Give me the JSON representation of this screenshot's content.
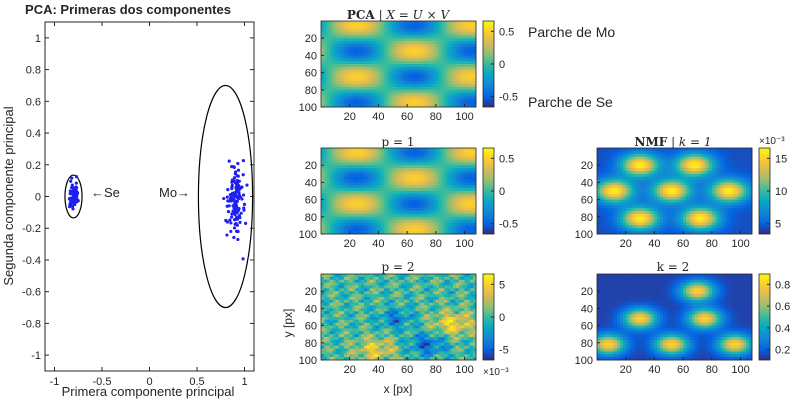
{
  "colors": {
    "scatter_se": "#1f1ff0",
    "scatter_mo": "#1f1ff0",
    "axis": "#262626",
    "ellipse": "#000000",
    "colormap": "parula"
  },
  "chart_data": [
    {
      "id": "pca_scatter",
      "type": "scatter",
      "title": "PCA: Primeras dos componentes",
      "xlabel": "Primera componente principal",
      "ylabel": "Segunda componente principal",
      "xlim": [
        -1.1,
        1.1
      ],
      "ylim": [
        -1.1,
        1.1
      ],
      "xticks": [
        "-1",
        "-0.5",
        "0",
        "0.5",
        "1"
      ],
      "yticks": [
        "1",
        "0.8",
        "0.6",
        "0.4",
        "0.2",
        "0",
        "-0.2",
        "-0.4",
        "-0.6",
        "-0.8",
        "-1"
      ],
      "grid": false,
      "series": [
        {
          "cluster": "Se",
          "center": [
            -0.8,
            0.01
          ],
          "spread": [
            0.035,
            0.055
          ],
          "count": 60
        },
        {
          "cluster": "Mo",
          "center": [
            0.9,
            -0.03
          ],
          "spread": [
            0.06,
            0.15
          ],
          "count": 130
        }
      ],
      "ellipses": [
        {
          "center": [
            -0.8,
            0.0
          ],
          "radii": [
            0.09,
            0.135
          ]
        },
        {
          "center": [
            0.8,
            0.0
          ],
          "radii": [
            0.285,
            0.7
          ]
        }
      ],
      "annotations": [
        {
          "text": "←Se",
          "x": -0.72,
          "y": 0.0
        },
        {
          "text": "Mo→",
          "x": 0.25,
          "y": 0.0
        }
      ]
    },
    {
      "id": "pca_main",
      "type": "heatmap",
      "title_bold": "PCA",
      "title_rest": " | X = U × V",
      "pattern": "pca",
      "xticks": [
        "20",
        "40",
        "60",
        "80",
        "100"
      ],
      "yticks": [
        "20",
        "40",
        "60",
        "80",
        "100"
      ],
      "colorbar": [
        "0.5",
        "0",
        "-0.5"
      ],
      "annotations": [
        "Parche de Mo",
        "Parche de Se"
      ]
    },
    {
      "id": "pca_p1",
      "type": "heatmap",
      "title": "p = 1",
      "pattern": "pca",
      "xticks": [
        "20",
        "40",
        "60",
        "80",
        "100"
      ],
      "yticks": [
        "20",
        "40",
        "60",
        "80",
        "100"
      ],
      "colorbar": [
        "0.5",
        "0",
        "-0.5"
      ]
    },
    {
      "id": "pca_p2",
      "type": "heatmap",
      "title": "p = 2",
      "pattern": "noise",
      "xlabel": "x [px]",
      "ylabel": "y [px]",
      "xticks": [
        "20",
        "40",
        "60",
        "80",
        "100"
      ],
      "yticks": [
        "20",
        "40",
        "60",
        "80",
        "100"
      ],
      "colorbar": [
        "5",
        "0",
        "-5"
      ],
      "colorbar_exponent": "×10⁻³"
    },
    {
      "id": "nmf_k1",
      "type": "heatmap",
      "title_bold": "NMF",
      "title_rest": " | k = 1",
      "pattern": "mo",
      "xticks": [
        "20",
        "40",
        "60",
        "80",
        "100"
      ],
      "yticks": [
        "20",
        "40",
        "60",
        "80",
        "100"
      ],
      "colorbar": [
        "15",
        "10",
        "5"
      ],
      "colorbar_exponent": "×10⁻³"
    },
    {
      "id": "nmf_k2",
      "type": "heatmap",
      "title": "k = 2",
      "pattern": "se",
      "xticks": [
        "20",
        "40",
        "60",
        "80",
        "100"
      ],
      "yticks": [
        "20",
        "40",
        "60",
        "80",
        "100"
      ],
      "colorbar": [
        "0.8",
        "0.6",
        "0.4",
        "0.2"
      ]
    }
  ]
}
